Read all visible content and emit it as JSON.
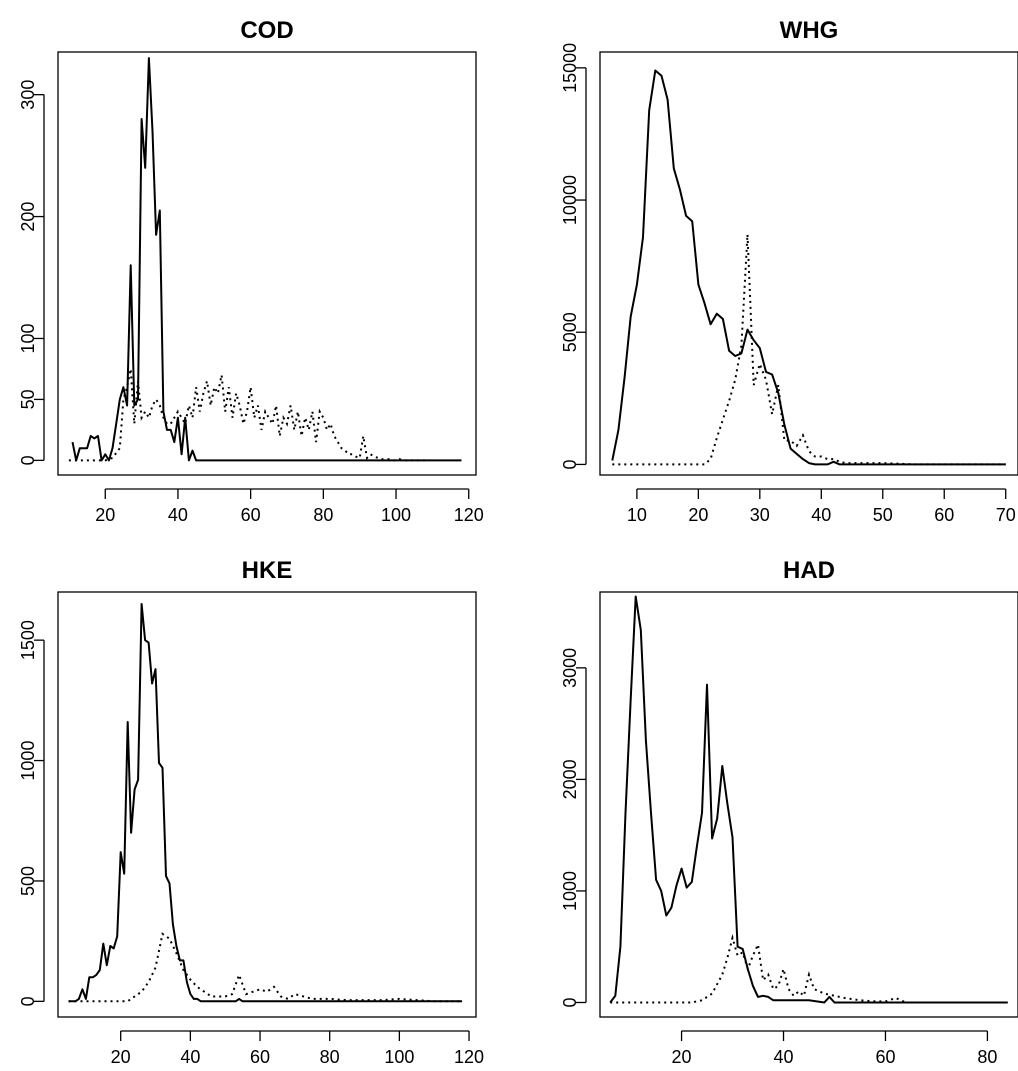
{
  "chart_data": [
    {
      "type": "line",
      "title": "COD",
      "xlim": [
        7,
        122
      ],
      "ylim": [
        -12,
        335
      ],
      "xticks": [
        20,
        40,
        60,
        80,
        100,
        120
      ],
      "yticks": [
        0,
        50,
        100,
        200,
        300
      ],
      "series": [
        {
          "style": "solid",
          "x": [
            11,
            12,
            13,
            14,
            15,
            16,
            17,
            18,
            19,
            20,
            21,
            22,
            23,
            24,
            25,
            26,
            27,
            28,
            29,
            30,
            31,
            32,
            33,
            34,
            35,
            36,
            37,
            38,
            39,
            40,
            41,
            42,
            43,
            44,
            45,
            50,
            60,
            70,
            80,
            90,
            100,
            110,
            118
          ],
          "y": [
            15,
            0,
            10,
            10,
            10,
            20,
            18,
            20,
            0,
            5,
            0,
            10,
            30,
            50,
            60,
            45,
            160,
            45,
            50,
            280,
            240,
            330,
            270,
            185,
            205,
            40,
            25,
            25,
            15,
            35,
            5,
            35,
            0,
            8,
            0,
            0,
            0,
            0,
            0,
            0,
            0,
            0,
            0
          ]
        },
        {
          "style": "dotted",
          "x": [
            10,
            15,
            20,
            22,
            24,
            25,
            26,
            27,
            28,
            29,
            30,
            31,
            32,
            33,
            34,
            35,
            36,
            37,
            38,
            39,
            40,
            41,
            42,
            43,
            44,
            45,
            46,
            47,
            48,
            49,
            50,
            51,
            52,
            53,
            54,
            55,
            56,
            57,
            58,
            59,
            60,
            61,
            62,
            63,
            64,
            65,
            66,
            67,
            68,
            69,
            70,
            71,
            72,
            73,
            74,
            75,
            76,
            77,
            78,
            79,
            80,
            81,
            82,
            83,
            84,
            85,
            86,
            87,
            88,
            89,
            90,
            91,
            92,
            93,
            94,
            95,
            96,
            97,
            98,
            99,
            100,
            101,
            102,
            103,
            104,
            105,
            106,
            107,
            108
          ],
          "y": [
            0,
            0,
            0,
            2,
            10,
            50,
            60,
            75,
            30,
            65,
            35,
            40,
            35,
            45,
            50,
            45,
            35,
            30,
            30,
            35,
            40,
            35,
            30,
            45,
            35,
            60,
            40,
            55,
            65,
            45,
            60,
            55,
            70,
            40,
            60,
            35,
            55,
            45,
            30,
            40,
            60,
            35,
            45,
            25,
            40,
            35,
            30,
            45,
            20,
            35,
            30,
            45,
            25,
            40,
            20,
            35,
            25,
            40,
            15,
            40,
            35,
            25,
            30,
            20,
            15,
            10,
            8,
            5,
            5,
            3,
            2,
            20,
            2,
            5,
            3,
            2,
            1,
            1,
            1,
            0,
            0,
            1,
            0,
            0,
            0,
            0,
            0,
            0,
            0
          ]
        }
      ]
    },
    {
      "type": "line",
      "title": "WHG",
      "xlim": [
        4,
        72
      ],
      "ylim": [
        -400,
        15600
      ],
      "xticks": [
        10,
        20,
        30,
        40,
        50,
        60,
        70
      ],
      "yticks": [
        0,
        5000,
        10000,
        15000
      ],
      "series": [
        {
          "style": "solid",
          "x": [
            6,
            7,
            8,
            9,
            10,
            11,
            12,
            13,
            14,
            15,
            16,
            17,
            18,
            19,
            20,
            21,
            22,
            23,
            24,
            25,
            26,
            27,
            28,
            29,
            30,
            31,
            32,
            33,
            34,
            35,
            36,
            37,
            38,
            39,
            40,
            41,
            42,
            43,
            45,
            50,
            55,
            60,
            65,
            70
          ],
          "y": [
            150,
            1300,
            3300,
            5600,
            6800,
            8600,
            13400,
            14900,
            14700,
            13800,
            11200,
            10400,
            9400,
            9200,
            6800,
            6100,
            5300,
            5700,
            5500,
            4300,
            4100,
            4200,
            5100,
            4700,
            4400,
            3500,
            3400,
            2700,
            1500,
            600,
            400,
            200,
            50,
            0,
            0,
            0,
            100,
            0,
            0,
            0,
            0,
            0,
            0,
            0
          ]
        },
        {
          "style": "dotted",
          "x": [
            6,
            10,
            15,
            20,
            21,
            22,
            23,
            24,
            25,
            26,
            27,
            28,
            29,
            30,
            31,
            32,
            33,
            34,
            35,
            36,
            37,
            38,
            39,
            40,
            41,
            42,
            43,
            44,
            45,
            50,
            55,
            60,
            65,
            70
          ],
          "y": [
            0,
            0,
            0,
            0,
            0,
            200,
            1000,
            1700,
            2400,
            3200,
            4500,
            8700,
            3000,
            3800,
            3200,
            1900,
            3000,
            900,
            900,
            700,
            1100,
            500,
            300,
            300,
            200,
            200,
            100,
            50,
            50,
            50,
            0,
            0,
            0,
            0
          ]
        }
      ]
    },
    {
      "type": "line",
      "title": "HKE",
      "xlim": [
        2,
        122
      ],
      "ylim": [
        -65,
        1700
      ],
      "xticks": [
        20,
        40,
        60,
        80,
        100,
        120
      ],
      "yticks": [
        0,
        500,
        1000,
        1500
      ],
      "series": [
        {
          "style": "solid",
          "x": [
            5,
            7,
            8,
            9,
            10,
            11,
            12,
            13,
            14,
            15,
            16,
            17,
            18,
            19,
            20,
            21,
            22,
            23,
            24,
            25,
            26,
            27,
            28,
            29,
            30,
            31,
            32,
            33,
            34,
            35,
            36,
            37,
            38,
            39,
            40,
            41,
            42,
            43,
            45,
            50,
            53,
            54,
            55,
            60,
            70,
            80,
            90,
            100,
            110,
            118
          ],
          "y": [
            0,
            0,
            10,
            50,
            10,
            100,
            100,
            110,
            130,
            240,
            150,
            230,
            220,
            270,
            620,
            530,
            1160,
            700,
            880,
            920,
            1650,
            1500,
            1490,
            1320,
            1380,
            990,
            970,
            520,
            490,
            320,
            230,
            170,
            170,
            80,
            30,
            10,
            10,
            0,
            0,
            0,
            0,
            10,
            0,
            0,
            0,
            0,
            0,
            0,
            0,
            0
          ]
        },
        {
          "style": "dotted",
          "x": [
            5,
            10,
            15,
            20,
            22,
            24,
            26,
            28,
            30,
            32,
            34,
            36,
            38,
            40,
            42,
            44,
            46,
            48,
            50,
            52,
            54,
            56,
            58,
            60,
            62,
            64,
            66,
            68,
            70,
            75,
            80,
            85,
            90,
            95,
            100,
            105,
            110,
            118
          ],
          "y": [
            0,
            0,
            0,
            0,
            0,
            20,
            40,
            80,
            140,
            280,
            260,
            200,
            130,
            90,
            60,
            40,
            20,
            20,
            20,
            30,
            110,
            30,
            40,
            50,
            40,
            60,
            20,
            10,
            30,
            10,
            10,
            5,
            5,
            5,
            10,
            5,
            0,
            0
          ]
        }
      ]
    },
    {
      "type": "line",
      "title": "HAD",
      "xlim": [
        4,
        86
      ],
      "ylim": [
        -130,
        3680
      ],
      "xticks": [
        20,
        40,
        60,
        80
      ],
      "yticks": [
        0,
        1000,
        2000,
        3000
      ],
      "series": [
        {
          "style": "solid",
          "x": [
            6,
            7,
            8,
            9,
            10,
            11,
            12,
            13,
            14,
            15,
            16,
            17,
            18,
            19,
            20,
            21,
            22,
            23,
            24,
            25,
            26,
            27,
            28,
            29,
            30,
            31,
            32,
            33,
            34,
            35,
            36,
            37,
            38,
            39,
            40,
            45,
            48,
            49,
            50,
            55,
            60,
            70,
            84
          ],
          "y": [
            0,
            60,
            500,
            1700,
            2700,
            3640,
            3340,
            2350,
            1700,
            1100,
            1000,
            780,
            850,
            1050,
            1200,
            1030,
            1080,
            1400,
            1700,
            2850,
            1470,
            1650,
            2120,
            1780,
            1480,
            500,
            480,
            300,
            150,
            50,
            60,
            50,
            20,
            20,
            20,
            20,
            0,
            50,
            0,
            0,
            0,
            0,
            0
          ]
        },
        {
          "style": "dotted",
          "x": [
            6,
            15,
            20,
            22,
            24,
            26,
            28,
            29,
            30,
            31,
            32,
            33,
            34,
            35,
            36,
            37,
            38,
            39,
            40,
            41,
            42,
            43,
            44,
            45,
            46,
            48,
            50,
            52,
            55,
            58,
            60,
            62,
            64,
            70,
            84
          ],
          "y": [
            0,
            0,
            0,
            0,
            20,
            80,
            250,
            400,
            580,
            420,
            450,
            300,
            420,
            520,
            200,
            250,
            120,
            150,
            300,
            120,
            60,
            100,
            60,
            250,
            120,
            80,
            60,
            40,
            20,
            10,
            10,
            40,
            0,
            0,
            0
          ]
        }
      ]
    }
  ]
}
